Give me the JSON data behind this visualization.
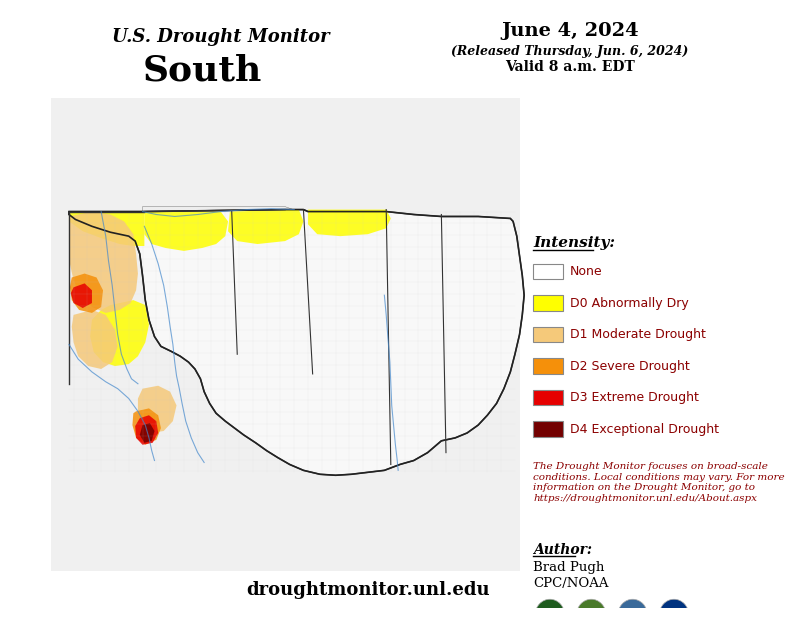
{
  "title_line1": "U.S. Drought Monitor",
  "title_line2": "South",
  "date_line1": "June 4, 2024",
  "date_line2": "(Released Thursday, Jun. 6, 2024)",
  "date_line3": "Valid 8 a.m. EDT",
  "intensity_label": "Intensity:",
  "legend_items": [
    {
      "label": "None",
      "color": "#FFFFFF",
      "edgecolor": "#888888"
    },
    {
      "label": "D0 Abnormally Dry",
      "color": "#FFFF00",
      "edgecolor": "#888888"
    },
    {
      "label": "D1 Moderate Drought",
      "color": "#F5C97A",
      "edgecolor": "#888888"
    },
    {
      "label": "D2 Severe Drought",
      "color": "#F5900A",
      "edgecolor": "#888888"
    },
    {
      "label": "D3 Extreme Drought",
      "color": "#E60000",
      "edgecolor": "#888888"
    },
    {
      "label": "D4 Exceptional Drought",
      "color": "#730000",
      "edgecolor": "#888888"
    }
  ],
  "disclaimer_text": "The Drought Monitor focuses on broad-scale\nconditions. Local conditions may vary. For more\ninformation on the Drought Monitor, go to\nhttps://droughtmonitor.unl.edu/About.aspx",
  "author_label": "Author:",
  "author_name": "Brad Pugh",
  "author_org": "CPC/NOAA",
  "website": "droughtmonitor.unl.edu",
  "bg_color": "#FFFFFF",
  "map_bg": "#FFFFFF",
  "border_color": "#000000",
  "legend_text_color": "#8B0000",
  "disclaimer_color": "#8B0000",
  "title_color": "#000000",
  "date_color": "#000000"
}
